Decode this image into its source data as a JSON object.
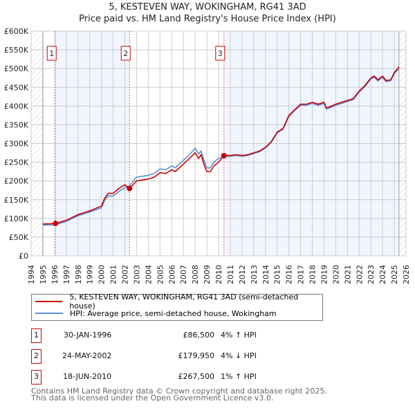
{
  "title": "5, KESTEVEN WAY, WOKINGHAM, RG41 3AD",
  "subtitle": "Price paid vs. HM Land Registry's House Price Index (HPI)",
  "chart_data": {
    "type": "line",
    "xlim": [
      1994,
      2026
    ],
    "ylim": [
      0,
      600000
    ],
    "x_ticks": [
      1994,
      1995,
      1996,
      1997,
      1998,
      1999,
      2000,
      2001,
      2002,
      2003,
      2004,
      2005,
      2006,
      2007,
      2008,
      2009,
      2010,
      2011,
      2012,
      2013,
      2014,
      2015,
      2016,
      2017,
      2018,
      2019,
      2020,
      2021,
      2022,
      2023,
      2024,
      2025,
      2026
    ],
    "y_ticks": [
      0,
      50000,
      100000,
      150000,
      200000,
      250000,
      300000,
      350000,
      400000,
      450000,
      500000,
      550000,
      600000
    ],
    "y_tick_labels": [
      "£0",
      "£50K",
      "£100K",
      "£150K",
      "£200K",
      "£250K",
      "£300K",
      "£350K",
      "£400K",
      "£450K",
      "£500K",
      "£550K",
      "£600K"
    ],
    "data_range": [
      1995,
      2025.4
    ],
    "series": [
      {
        "name": "5, KESTEVEN WAY, WOKINGHAM, RG41 3AD (semi-detached house)",
        "color": "#cc0000",
        "x": [
          1995,
          1996.08,
          1997,
          1998,
          1999,
          2000,
          2000.3,
          2000.6,
          2001,
          2001.5,
          2002,
          2002.4,
          2003,
          2004,
          2004.5,
          2005,
          2005.5,
          2006,
          2006.3,
          2007,
          2007.5,
          2008,
          2008.3,
          2008.5,
          2008.8,
          2009,
          2009.3,
          2009.6,
          2010,
          2010.46,
          2011,
          2011.5,
          2012,
          2012.5,
          2013,
          2013.5,
          2014,
          2014.5,
          2015,
          2015.5,
          2016,
          2016.5,
          2017,
          2017.5,
          2018,
          2018.5,
          2019,
          2019.2,
          2019.5,
          2020,
          2020.5,
          2021,
          2021.5,
          2022,
          2022.5,
          2023,
          2023.3,
          2023.6,
          2024,
          2024.3,
          2024.7,
          2025,
          2025.3,
          2025.4
        ],
        "y": [
          85000,
          86500,
          95000,
          110000,
          120000,
          133000,
          155000,
          167000,
          167000,
          180000,
          190000,
          180000,
          200000,
          205000,
          210000,
          222000,
          220000,
          230000,
          225000,
          245000,
          260000,
          275000,
          260000,
          270000,
          240000,
          225000,
          225000,
          240000,
          250000,
          267500,
          268000,
          270000,
          268000,
          270000,
          275000,
          280000,
          290000,
          305000,
          330000,
          340000,
          375000,
          390000,
          405000,
          405000,
          410000,
          405000,
          410000,
          395000,
          398000,
          405000,
          410000,
          415000,
          420000,
          440000,
          455000,
          475000,
          480000,
          470000,
          480000,
          468000,
          470000,
          490000,
          500000,
          505000
        ]
      },
      {
        "name": "HPI: Average price, semi-detached house, Wokingham",
        "color": "#5b8fd6",
        "x": [
          1995,
          1996.08,
          1997,
          1998,
          1999,
          2000,
          2000.3,
          2000.6,
          2001,
          2001.5,
          2002,
          2002.4,
          2003,
          2004,
          2004.5,
          2005,
          2005.5,
          2006,
          2006.3,
          2007,
          2007.5,
          2008,
          2008.3,
          2008.5,
          2008.8,
          2009,
          2009.3,
          2009.6,
          2010,
          2010.46,
          2011,
          2011.5,
          2012,
          2012.5,
          2013,
          2013.5,
          2014,
          2014.5,
          2015,
          2015.5,
          2016,
          2016.5,
          2017,
          2017.5,
          2018,
          2018.5,
          2019,
          2019.2,
          2019.5,
          2020,
          2020.5,
          2021,
          2021.5,
          2022,
          2022.5,
          2023,
          2023.3,
          2023.6,
          2024,
          2024.3,
          2024.7,
          2025,
          2025.3,
          2025.4
        ],
        "y": [
          82000,
          83000,
          92000,
          107000,
          117000,
          128000,
          150000,
          160000,
          160000,
          172000,
          182000,
          187000,
          210000,
          215000,
          220000,
          232000,
          230000,
          240000,
          235000,
          255000,
          270000,
          287000,
          272000,
          280000,
          250000,
          235000,
          235000,
          250000,
          260000,
          265000,
          266000,
          268000,
          266000,
          268000,
          273000,
          278000,
          288000,
          303000,
          328000,
          338000,
          372000,
          388000,
          402000,
          402000,
          407000,
          402000,
          407000,
          392000,
          395000,
          402000,
          407000,
          412000,
          417000,
          437000,
          452000,
          472000,
          477000,
          467000,
          476000,
          465000,
          468000,
          487000,
          497000,
          500000
        ]
      }
    ],
    "sales": [
      {
        "label": "1",
        "x": 1996.08,
        "y": 86500,
        "date": "30-JAN-1996",
        "price": "£86,500",
        "hpi": "4% ↑ HPI"
      },
      {
        "label": "2",
        "x": 2002.4,
        "y": 179950,
        "date": "24-MAY-2002",
        "price": "£179,950",
        "hpi": "4% ↓ HPI"
      },
      {
        "label": "3",
        "x": 2010.46,
        "y": 267500,
        "date": "18-JUN-2010",
        "price": "£267,500",
        "hpi": "1% ↑ HPI"
      }
    ],
    "legend_position": "bottom"
  },
  "footer": [
    "Contains HM Land Registry data © Crown copyright and database right 2025.",
    "This data is licensed under the Open Government Licence v3.0."
  ]
}
